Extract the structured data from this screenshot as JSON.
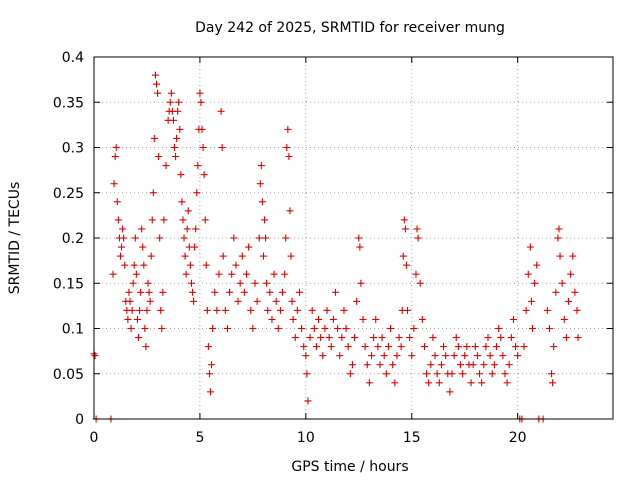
{
  "chart_data": {
    "type": "scatter",
    "title": "Day 242 of 2025, SRMTID for receiver mung",
    "xlabel": "GPS time / hours",
    "ylabel": "SRMTID / TECUs",
    "xlim": [
      0,
      24.5
    ],
    "ylim": [
      0,
      0.4
    ],
    "xticks": [
      0,
      5,
      10,
      15,
      20
    ],
    "xtick_labels": [
      "0",
      "5",
      "10",
      "15",
      "20"
    ],
    "yticks": [
      0,
      0.05,
      0.1,
      0.15,
      0.2,
      0.25,
      0.3,
      0.35,
      0.4
    ],
    "ytick_labels": [
      "0",
      "0.05",
      "0.1",
      "0.15",
      "0.2",
      "0.25",
      "0.3",
      "0.35",
      "0.4"
    ],
    "grid": true,
    "marker": "+",
    "color": "#e00000",
    "series": [
      {
        "name": "SRMTID",
        "points": [
          [
            0.0,
            0.072
          ],
          [
            0.05,
            0.07
          ],
          [
            0.1,
            0.0
          ],
          [
            0.8,
            0.0
          ],
          [
            0.9,
            0.16
          ],
          [
            0.95,
            0.26
          ],
          [
            1.0,
            0.29
          ],
          [
            1.05,
            0.3
          ],
          [
            1.1,
            0.24
          ],
          [
            1.15,
            0.22
          ],
          [
            1.2,
            0.2
          ],
          [
            1.25,
            0.18
          ],
          [
            1.3,
            0.19
          ],
          [
            1.35,
            0.21
          ],
          [
            1.4,
            0.2
          ],
          [
            1.45,
            0.17
          ],
          [
            1.5,
            0.13
          ],
          [
            1.55,
            0.12
          ],
          [
            1.6,
            0.11
          ],
          [
            1.65,
            0.14
          ],
          [
            1.7,
            0.13
          ],
          [
            1.75,
            0.1
          ],
          [
            1.8,
            0.12
          ],
          [
            1.85,
            0.15
          ],
          [
            1.9,
            0.17
          ],
          [
            1.95,
            0.2
          ],
          [
            2.0,
            0.16
          ],
          [
            2.05,
            0.11
          ],
          [
            2.1,
            0.09
          ],
          [
            2.15,
            0.12
          ],
          [
            2.2,
            0.14
          ],
          [
            2.25,
            0.21
          ],
          [
            2.3,
            0.19
          ],
          [
            2.35,
            0.17
          ],
          [
            2.4,
            0.1
          ],
          [
            2.45,
            0.08
          ],
          [
            2.5,
            0.12
          ],
          [
            2.55,
            0.15
          ],
          [
            2.6,
            0.14
          ],
          [
            2.65,
            0.13
          ],
          [
            2.7,
            0.18
          ],
          [
            2.75,
            0.22
          ],
          [
            2.8,
            0.25
          ],
          [
            2.85,
            0.31
          ],
          [
            2.9,
            0.38
          ],
          [
            2.95,
            0.37
          ],
          [
            3.0,
            0.36
          ],
          [
            3.05,
            0.29
          ],
          [
            3.1,
            0.2
          ],
          [
            3.15,
            0.12
          ],
          [
            3.2,
            0.1
          ],
          [
            3.25,
            0.14
          ],
          [
            3.3,
            0.22
          ],
          [
            3.4,
            0.28
          ],
          [
            3.5,
            0.33
          ],
          [
            3.55,
            0.34
          ],
          [
            3.6,
            0.35
          ],
          [
            3.65,
            0.36
          ],
          [
            3.7,
            0.34
          ],
          [
            3.75,
            0.33
          ],
          [
            3.8,
            0.3
          ],
          [
            3.85,
            0.29
          ],
          [
            3.9,
            0.31
          ],
          [
            3.95,
            0.34
          ],
          [
            4.0,
            0.35
          ],
          [
            4.05,
            0.32
          ],
          [
            4.1,
            0.27
          ],
          [
            4.15,
            0.24
          ],
          [
            4.2,
            0.22
          ],
          [
            4.25,
            0.2
          ],
          [
            4.3,
            0.18
          ],
          [
            4.35,
            0.16
          ],
          [
            4.4,
            0.21
          ],
          [
            4.45,
            0.23
          ],
          [
            4.5,
            0.19
          ],
          [
            4.55,
            0.17
          ],
          [
            4.6,
            0.15
          ],
          [
            4.65,
            0.14
          ],
          [
            4.7,
            0.13
          ],
          [
            4.75,
            0.19
          ],
          [
            4.8,
            0.21
          ],
          [
            4.85,
            0.25
          ],
          [
            4.9,
            0.28
          ],
          [
            4.95,
            0.32
          ],
          [
            5.0,
            0.36
          ],
          [
            5.05,
            0.35
          ],
          [
            5.1,
            0.32
          ],
          [
            5.15,
            0.3
          ],
          [
            5.2,
            0.27
          ],
          [
            5.25,
            0.22
          ],
          [
            5.3,
            0.17
          ],
          [
            5.35,
            0.12
          ],
          [
            5.4,
            0.08
          ],
          [
            5.45,
            0.05
          ],
          [
            5.5,
            0.03
          ],
          [
            5.55,
            0.06
          ],
          [
            5.6,
            0.1
          ],
          [
            5.7,
            0.14
          ],
          [
            5.8,
            0.12
          ],
          [
            5.9,
            0.16
          ],
          [
            6.0,
            0.34
          ],
          [
            6.05,
            0.3
          ],
          [
            6.1,
            0.18
          ],
          [
            6.2,
            0.12
          ],
          [
            6.3,
            0.1
          ],
          [
            6.4,
            0.14
          ],
          [
            6.5,
            0.16
          ],
          [
            6.6,
            0.2
          ],
          [
            6.7,
            0.17
          ],
          [
            6.8,
            0.13
          ],
          [
            6.9,
            0.15
          ],
          [
            7.0,
            0.18
          ],
          [
            7.1,
            0.14
          ],
          [
            7.2,
            0.16
          ],
          [
            7.3,
            0.19
          ],
          [
            7.4,
            0.12
          ],
          [
            7.5,
            0.1
          ],
          [
            7.6,
            0.15
          ],
          [
            7.7,
            0.13
          ],
          [
            7.8,
            0.2
          ],
          [
            7.85,
            0.26
          ],
          [
            7.9,
            0.28
          ],
          [
            7.95,
            0.24
          ],
          [
            8.0,
            0.18
          ],
          [
            8.05,
            0.22
          ],
          [
            8.1,
            0.2
          ],
          [
            8.15,
            0.15
          ],
          [
            8.2,
            0.12
          ],
          [
            8.3,
            0.14
          ],
          [
            8.4,
            0.11
          ],
          [
            8.5,
            0.16
          ],
          [
            8.6,
            0.13
          ],
          [
            8.7,
            0.1
          ],
          [
            8.8,
            0.12
          ],
          [
            8.9,
            0.14
          ],
          [
            9.0,
            0.16
          ],
          [
            9.05,
            0.2
          ],
          [
            9.1,
            0.3
          ],
          [
            9.15,
            0.32
          ],
          [
            9.2,
            0.29
          ],
          [
            9.25,
            0.23
          ],
          [
            9.3,
            0.18
          ],
          [
            9.35,
            0.13
          ],
          [
            9.4,
            0.11
          ],
          [
            9.5,
            0.09
          ],
          [
            9.6,
            0.12
          ],
          [
            9.7,
            0.14
          ],
          [
            9.8,
            0.1
          ],
          [
            9.9,
            0.08
          ],
          [
            10.0,
            0.07
          ],
          [
            10.05,
            0.05
          ],
          [
            10.1,
            0.02
          ],
          [
            10.2,
            0.09
          ],
          [
            10.3,
            0.12
          ],
          [
            10.4,
            0.1
          ],
          [
            10.5,
            0.08
          ],
          [
            10.6,
            0.11
          ],
          [
            10.7,
            0.09
          ],
          [
            10.8,
            0.07
          ],
          [
            10.9,
            0.1
          ],
          [
            11.0,
            0.12
          ],
          [
            11.1,
            0.09
          ],
          [
            11.2,
            0.08
          ],
          [
            11.3,
            0.11
          ],
          [
            11.4,
            0.14
          ],
          [
            11.5,
            0.1
          ],
          [
            11.6,
            0.07
          ],
          [
            11.7,
            0.09
          ],
          [
            11.8,
            0.12
          ],
          [
            11.9,
            0.1
          ],
          [
            12.0,
            0.08
          ],
          [
            12.1,
            0.05
          ],
          [
            12.2,
            0.06
          ],
          [
            12.3,
            0.09
          ],
          [
            12.4,
            0.13
          ],
          [
            12.5,
            0.2
          ],
          [
            12.55,
            0.19
          ],
          [
            12.6,
            0.15
          ],
          [
            12.7,
            0.11
          ],
          [
            12.8,
            0.08
          ],
          [
            12.9,
            0.06
          ],
          [
            13.0,
            0.04
          ],
          [
            13.1,
            0.07
          ],
          [
            13.2,
            0.09
          ],
          [
            13.3,
            0.11
          ],
          [
            13.4,
            0.08
          ],
          [
            13.5,
            0.06
          ],
          [
            13.6,
            0.09
          ],
          [
            13.7,
            0.07
          ],
          [
            13.8,
            0.05
          ],
          [
            13.9,
            0.08
          ],
          [
            14.0,
            0.1
          ],
          [
            14.1,
            0.06
          ],
          [
            14.2,
            0.04
          ],
          [
            14.3,
            0.07
          ],
          [
            14.4,
            0.09
          ],
          [
            14.5,
            0.08
          ],
          [
            14.55,
            0.12
          ],
          [
            14.6,
            0.18
          ],
          [
            14.65,
            0.22
          ],
          [
            14.7,
            0.21
          ],
          [
            14.75,
            0.17
          ],
          [
            14.8,
            0.12
          ],
          [
            14.9,
            0.09
          ],
          [
            15.0,
            0.07
          ],
          [
            15.1,
            0.1
          ],
          [
            15.2,
            0.16
          ],
          [
            15.25,
            0.21
          ],
          [
            15.3,
            0.2
          ],
          [
            15.4,
            0.15
          ],
          [
            15.5,
            0.11
          ],
          [
            15.6,
            0.08
          ],
          [
            15.7,
            0.05
          ],
          [
            15.8,
            0.04
          ],
          [
            15.9,
            0.06
          ],
          [
            16.0,
            0.09
          ],
          [
            16.1,
            0.07
          ],
          [
            16.2,
            0.05
          ],
          [
            16.3,
            0.04
          ],
          [
            16.4,
            0.06
          ],
          [
            16.5,
            0.08
          ],
          [
            16.6,
            0.07
          ],
          [
            16.7,
            0.05
          ],
          [
            16.8,
            0.03
          ],
          [
            16.9,
            0.05
          ],
          [
            17.0,
            0.07
          ],
          [
            17.1,
            0.09
          ],
          [
            17.2,
            0.08
          ],
          [
            17.3,
            0.06
          ],
          [
            17.4,
            0.05
          ],
          [
            17.5,
            0.07
          ],
          [
            17.6,
            0.08
          ],
          [
            17.7,
            0.06
          ],
          [
            17.8,
            0.04
          ],
          [
            17.9,
            0.06
          ],
          [
            18.0,
            0.08
          ],
          [
            18.1,
            0.07
          ],
          [
            18.2,
            0.05
          ],
          [
            18.3,
            0.04
          ],
          [
            18.4,
            0.06
          ],
          [
            18.5,
            0.08
          ],
          [
            18.6,
            0.09
          ],
          [
            18.7,
            0.07
          ],
          [
            18.8,
            0.05
          ],
          [
            18.9,
            0.06
          ],
          [
            19.0,
            0.08
          ],
          [
            19.1,
            0.1
          ],
          [
            19.2,
            0.09
          ],
          [
            19.3,
            0.07
          ],
          [
            19.4,
            0.05
          ],
          [
            19.5,
            0.04
          ],
          [
            19.6,
            0.06
          ],
          [
            19.7,
            0.09
          ],
          [
            19.8,
            0.11
          ],
          [
            19.9,
            0.08
          ],
          [
            20.0,
            0.07
          ],
          [
            20.1,
            0.0
          ],
          [
            20.2,
            0.0
          ],
          [
            20.3,
            0.08
          ],
          [
            20.4,
            0.12
          ],
          [
            20.5,
            0.16
          ],
          [
            20.6,
            0.19
          ],
          [
            20.65,
            0.13
          ],
          [
            20.7,
            0.1
          ],
          [
            20.8,
            0.15
          ],
          [
            20.9,
            0.17
          ],
          [
            21.0,
            0.0
          ],
          [
            21.2,
            0.0
          ],
          [
            21.4,
            0.12
          ],
          [
            21.5,
            0.1
          ],
          [
            21.6,
            0.05
          ],
          [
            21.65,
            0.04
          ],
          [
            21.7,
            0.08
          ],
          [
            21.8,
            0.14
          ],
          [
            21.9,
            0.2
          ],
          [
            21.95,
            0.21
          ],
          [
            22.0,
            0.18
          ],
          [
            22.1,
            0.15
          ],
          [
            22.2,
            0.11
          ],
          [
            22.3,
            0.09
          ],
          [
            22.4,
            0.13
          ],
          [
            22.5,
            0.16
          ],
          [
            22.6,
            0.18
          ],
          [
            22.7,
            0.14
          ],
          [
            22.8,
            0.12
          ],
          [
            22.85,
            0.09
          ]
        ]
      }
    ]
  }
}
